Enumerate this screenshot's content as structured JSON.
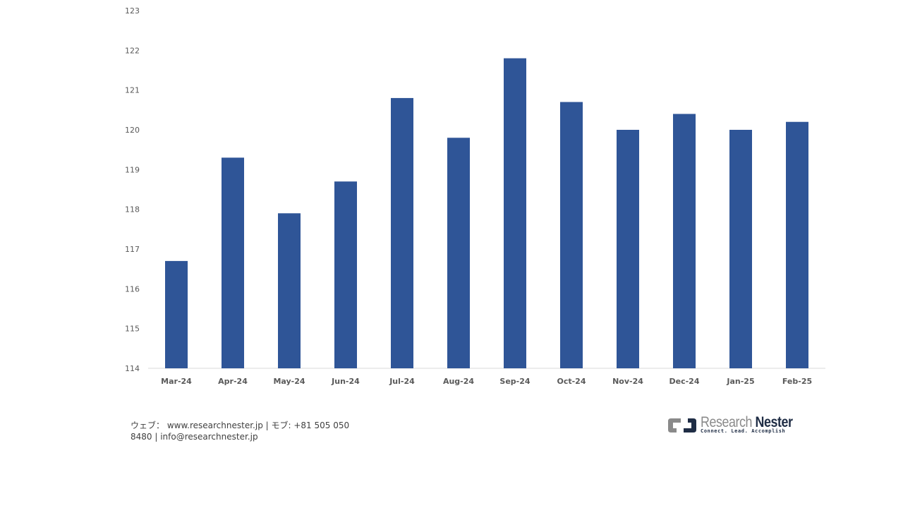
{
  "chart_data": {
    "type": "bar",
    "title": "",
    "xlabel": "",
    "ylabel": "",
    "categories": [
      "Mar-24",
      "Apr-24",
      "May-24",
      "Jun-24",
      "Jul-24",
      "Aug-24",
      "Sep-24",
      "Oct-24",
      "Nov-24",
      "Dec-24",
      "Jan-25",
      "Feb-25"
    ],
    "values": [
      116.7,
      119.3,
      117.9,
      118.7,
      120.8,
      119.8,
      121.8,
      120.7,
      120.0,
      120.4,
      120.0,
      120.2
    ],
    "ylim": [
      114,
      123
    ],
    "yticks": [
      114,
      115,
      116,
      117,
      118,
      119,
      120,
      121,
      122,
      123
    ],
    "grid": false,
    "legend": null,
    "bar_color": "#2f5597"
  },
  "footer": {
    "line1": "ウェブ： www.researchnester.jp | モブ: +81 505 050",
    "line2": "8480 | info@researchnester.jp"
  },
  "logo": {
    "name_part1": "Research",
    "name_part2": "Nester",
    "tagline": "Connect. Lead. Accomplish"
  }
}
